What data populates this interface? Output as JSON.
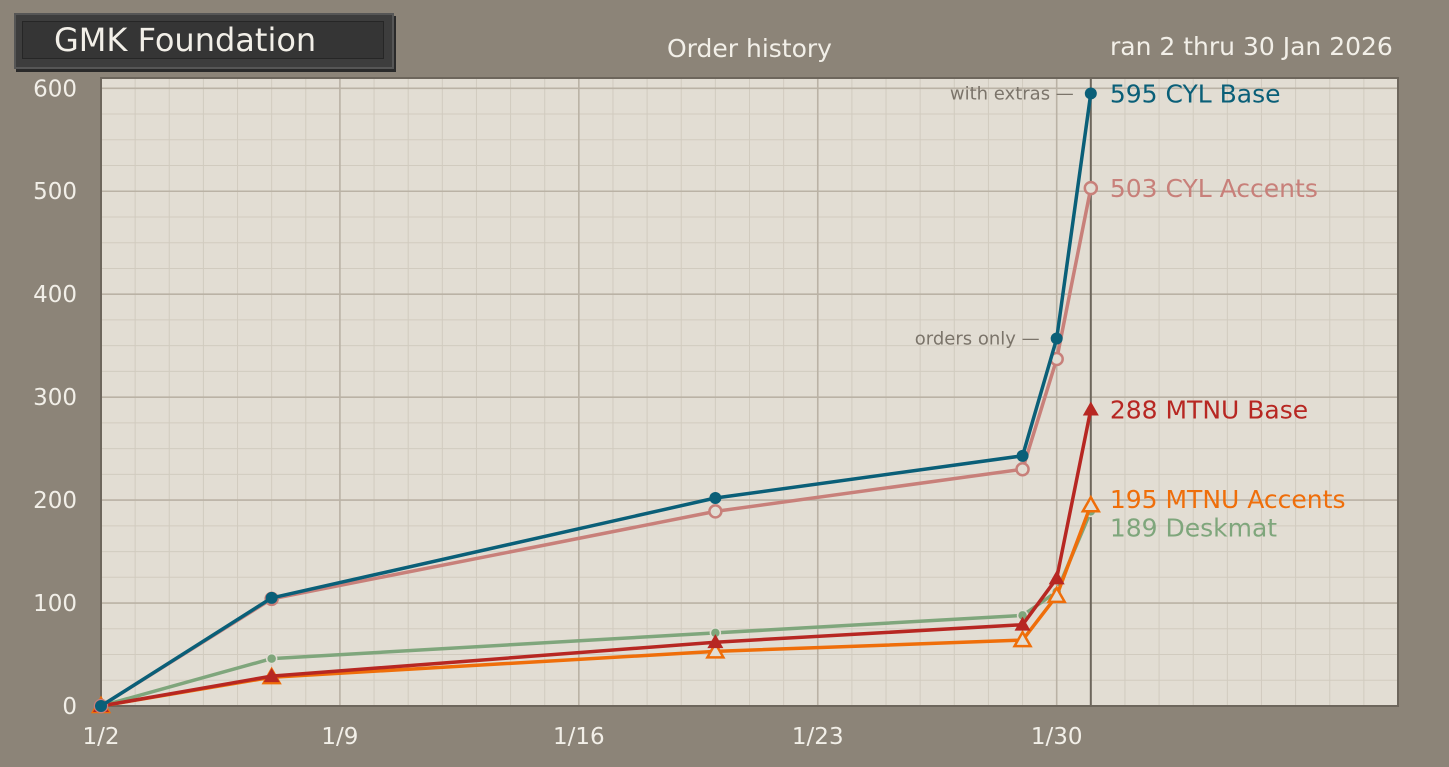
{
  "header": {
    "logo_text": "GMK Foundation",
    "title": "Order history",
    "date_range": "ran 2 thru 30 Jan 2026"
  },
  "chart_data": {
    "type": "line",
    "title": "Order history",
    "x_type": "date",
    "xlim": [
      "2026-01-02",
      "2026-02-09"
    ],
    "ylim": [
      0,
      610
    ],
    "x_ticks": [
      {
        "date": "2026-01-02",
        "label": "1/2"
      },
      {
        "date": "2026-01-09",
        "label": "1/9"
      },
      {
        "date": "2026-01-16",
        "label": "1/16"
      },
      {
        "date": "2026-01-23",
        "label": "1/23"
      },
      {
        "date": "2026-01-30",
        "label": "1/30"
      }
    ],
    "y_ticks": [
      0,
      100,
      200,
      300,
      400,
      500,
      600
    ],
    "grid": true,
    "end_date": "2026-01-31",
    "series": [
      {
        "name": "CYL Base",
        "end_label": "595 CYL Base",
        "color": "#0a5f78",
        "marker": "filled-circle",
        "x": [
          "2026-01-02",
          "2026-01-07",
          "2026-01-20",
          "2026-01-29",
          "2026-01-30",
          "2026-01-31"
        ],
        "y": [
          0,
          105,
          202,
          243,
          357,
          595
        ]
      },
      {
        "name": "CYL Accents",
        "end_label": "503 CYL Accents",
        "color": "#c8807a",
        "marker": "open-circle",
        "x": [
          "2026-01-02",
          "2026-01-07",
          "2026-01-20",
          "2026-01-29",
          "2026-01-30",
          "2026-01-31"
        ],
        "y": [
          0,
          104,
          189,
          230,
          337,
          503
        ]
      },
      {
        "name": "MTNU Base",
        "end_label": "288 MTNU Base",
        "color": "#b72722",
        "marker": "filled-triangle",
        "x": [
          "2026-01-02",
          "2026-01-07",
          "2026-01-20",
          "2026-01-29",
          "2026-01-30",
          "2026-01-31"
        ],
        "y": [
          0,
          29,
          62,
          79,
          124,
          288
        ]
      },
      {
        "name": "MTNU Accents",
        "end_label": "195 MTNU Accents",
        "color": "#ef6e0a",
        "marker": "open-triangle",
        "x": [
          "2026-01-02",
          "2026-01-07",
          "2026-01-20",
          "2026-01-29",
          "2026-01-30",
          "2026-01-31"
        ],
        "y": [
          0,
          28,
          53,
          64,
          107,
          195
        ]
      },
      {
        "name": "Deskmat",
        "end_label": "189 Deskmat",
        "color": "#7fa67c",
        "marker": "small-circle",
        "x": [
          "2026-01-02",
          "2026-01-07",
          "2026-01-20",
          "2026-01-29",
          "2026-01-30",
          "2026-01-31"
        ],
        "y": [
          0,
          46,
          71,
          88,
          111,
          189
        ]
      }
    ],
    "annotations": [
      {
        "text": "with extras —",
        "x": "2026-01-31",
        "y": 595
      },
      {
        "text": "orders only —",
        "x": "2026-01-30",
        "y": 357
      }
    ]
  }
}
